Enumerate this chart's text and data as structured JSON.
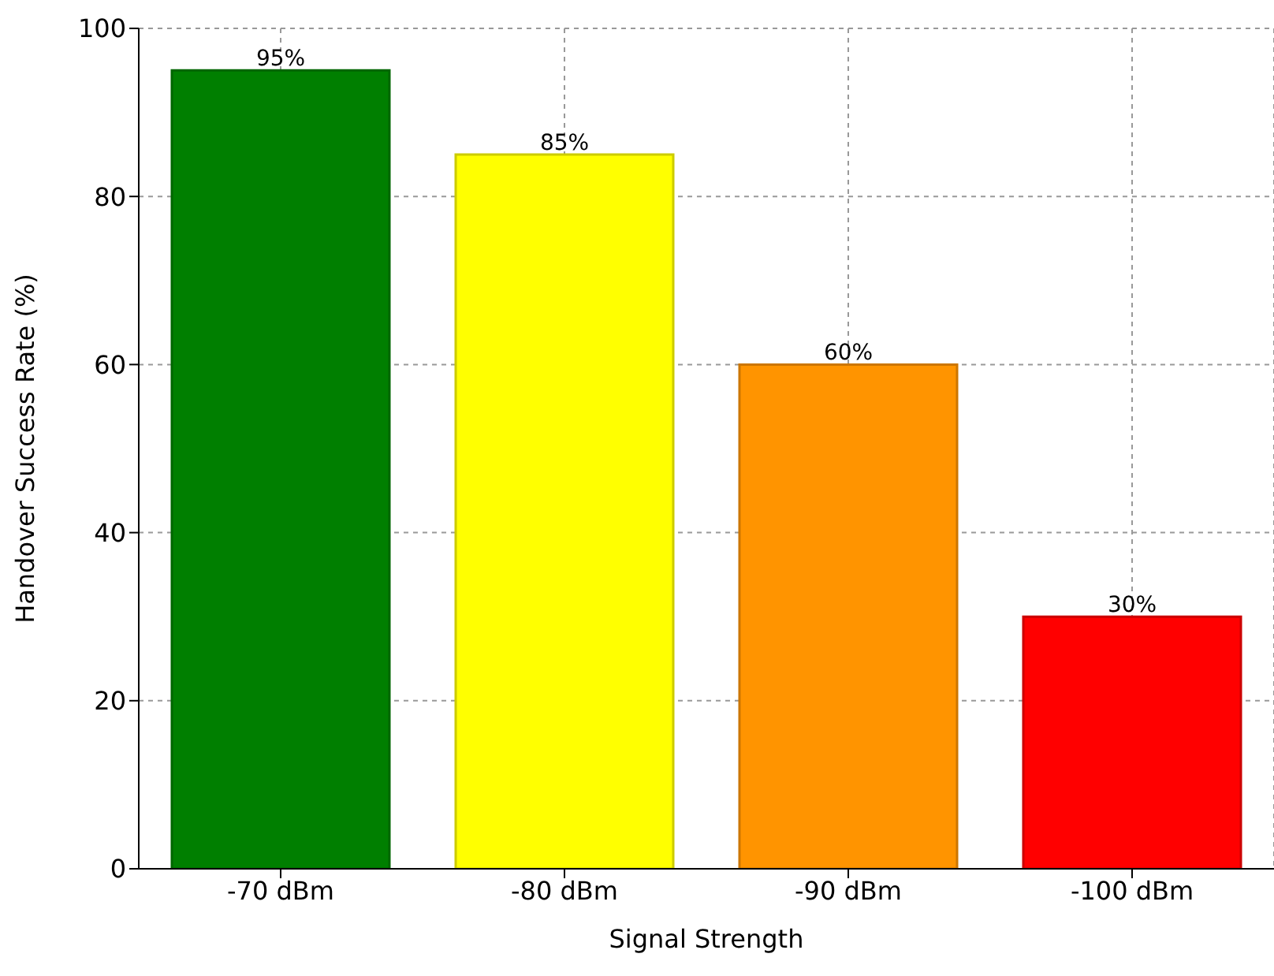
{
  "chart_data": {
    "type": "bar",
    "xlabel": "Signal Strength",
    "ylabel": "Handover Success Rate (%)",
    "categories": [
      "-70 dBm",
      "-80 dBm",
      "-90 dBm",
      "-100 dBm"
    ],
    "values": [
      95,
      85,
      60,
      30
    ],
    "colors": [
      "#007f00",
      "#ffff00",
      "#ff9400",
      "#ff0000"
    ],
    "value_labels": [
      "95%",
      "85%",
      "60%",
      "30%"
    ],
    "ylim": [
      0,
      100
    ],
    "yticks": [
      0,
      20,
      40,
      60,
      80,
      100
    ],
    "grid": true
  }
}
